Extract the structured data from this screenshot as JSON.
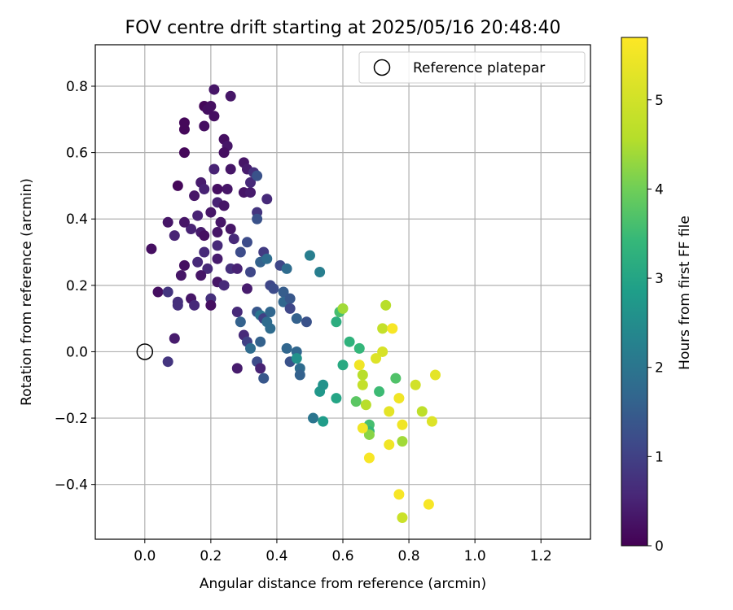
{
  "chart_data": {
    "type": "scatter",
    "title": "FOV centre drift starting at 2025/05/16 20:48:40",
    "xlabel": "Angular distance from reference (arcmin)",
    "ylabel": "Rotation from reference (arcmin)",
    "xlim": [
      -0.15,
      1.35
    ],
    "ylim": [
      -0.565,
      0.925
    ],
    "grid": true,
    "legend": {
      "placement": "top-right",
      "entries": [
        "Reference platepar"
      ]
    },
    "reference_point": {
      "x": 0.0,
      "y": 0.0
    },
    "x_ticks": [
      {
        "v": 0.0,
        "label": "0.0"
      },
      {
        "v": 0.2,
        "label": "0.2"
      },
      {
        "v": 0.4,
        "label": "0.4"
      },
      {
        "v": 0.6,
        "label": "0.6"
      },
      {
        "v": 0.8,
        "label": "0.8"
      },
      {
        "v": 1.0,
        "label": "1.0"
      },
      {
        "v": 1.2,
        "label": "1.2"
      }
    ],
    "y_ticks": [
      {
        "v": -0.4,
        "label": "−0.4"
      },
      {
        "v": -0.2,
        "label": "−0.2"
      },
      {
        "v": 0.0,
        "label": "0.0"
      },
      {
        "v": 0.2,
        "label": "0.2"
      },
      {
        "v": 0.4,
        "label": "0.4"
      },
      {
        "v": 0.6,
        "label": "0.6"
      },
      {
        "v": 0.8,
        "label": "0.8"
      }
    ],
    "colorbar": {
      "label": "Hours from first FF file",
      "range": [
        0,
        5.7
      ],
      "colormap": "viridis",
      "ticks": [
        {
          "v": 0,
          "label": "0"
        },
        {
          "v": 1,
          "label": "1"
        },
        {
          "v": 2,
          "label": "2"
        },
        {
          "v": 3,
          "label": "3"
        },
        {
          "v": 4,
          "label": "4"
        },
        {
          "v": 5,
          "label": "5"
        }
      ]
    },
    "points": [
      [
        0.1,
        0.5,
        0.1
      ],
      [
        0.12,
        0.69,
        0.1
      ],
      [
        0.12,
        0.67,
        0.1
      ],
      [
        0.12,
        0.6,
        0.1
      ],
      [
        0.18,
        0.74,
        0.1
      ],
      [
        0.19,
        0.73,
        0.2
      ],
      [
        0.2,
        0.74,
        0.2
      ],
      [
        0.21,
        0.71,
        0.2
      ],
      [
        0.18,
        0.68,
        0.2
      ],
      [
        0.21,
        0.79,
        0.3
      ],
      [
        0.26,
        0.77,
        0.3
      ],
      [
        0.24,
        0.64,
        0.2
      ],
      [
        0.25,
        0.62,
        0.3
      ],
      [
        0.24,
        0.6,
        0.2
      ],
      [
        0.3,
        0.57,
        0.3
      ],
      [
        0.31,
        0.55,
        0.4
      ],
      [
        0.26,
        0.55,
        0.3
      ],
      [
        0.21,
        0.55,
        0.5
      ],
      [
        0.17,
        0.51,
        0.4
      ],
      [
        0.18,
        0.49,
        0.5
      ],
      [
        0.15,
        0.47,
        0.3
      ],
      [
        0.22,
        0.49,
        0.2
      ],
      [
        0.25,
        0.49,
        0.3
      ],
      [
        0.22,
        0.45,
        0.5
      ],
      [
        0.2,
        0.42,
        0.3
      ],
      [
        0.24,
        0.44,
        0.3
      ],
      [
        0.16,
        0.41,
        0.5
      ],
      [
        0.23,
        0.39,
        0.3
      ],
      [
        0.26,
        0.37,
        0.3
      ],
      [
        0.22,
        0.36,
        0.3
      ],
      [
        0.17,
        0.36,
        0.4
      ],
      [
        0.18,
        0.35,
        0.2
      ],
      [
        0.14,
        0.37,
        0.5
      ],
      [
        0.07,
        0.39,
        0.3
      ],
      [
        0.12,
        0.39,
        0.3
      ],
      [
        0.09,
        0.35,
        0.5
      ],
      [
        0.02,
        0.31,
        0.2
      ],
      [
        0.22,
        0.32,
        0.6
      ],
      [
        0.22,
        0.28,
        0.4
      ],
      [
        0.18,
        0.3,
        0.6
      ],
      [
        0.16,
        0.27,
        0.6
      ],
      [
        0.12,
        0.26,
        0.2
      ],
      [
        0.19,
        0.25,
        0.6
      ],
      [
        0.11,
        0.23,
        0.3
      ],
      [
        0.17,
        0.23,
        0.3
      ],
      [
        0.22,
        0.21,
        0.3
      ],
      [
        0.24,
        0.2,
        0.6
      ],
      [
        0.04,
        0.18,
        0.2
      ],
      [
        0.07,
        0.18,
        0.8
      ],
      [
        0.1,
        0.15,
        0.7
      ],
      [
        0.1,
        0.14,
        0.7
      ],
      [
        0.14,
        0.16,
        0.3
      ],
      [
        0.15,
        0.14,
        0.6
      ],
      [
        0.2,
        0.16,
        0.7
      ],
      [
        0.2,
        0.14,
        0.2
      ],
      [
        0.09,
        0.04,
        0.4
      ],
      [
        0.07,
        -0.03,
        0.8
      ],
      [
        0.28,
        -0.05,
        0.4
      ],
      [
        0.27,
        0.34,
        0.6
      ],
      [
        0.26,
        0.25,
        0.7
      ],
      [
        0.28,
        0.25,
        0.5
      ],
      [
        0.29,
        0.3,
        1.2
      ],
      [
        0.31,
        0.33,
        1.2
      ],
      [
        0.3,
        0.48,
        0.3
      ],
      [
        0.32,
        0.48,
        0.4
      ],
      [
        0.32,
        0.51,
        0.6
      ],
      [
        0.33,
        0.54,
        0.7
      ],
      [
        0.34,
        0.53,
        1.3
      ],
      [
        0.37,
        0.46,
        0.6
      ],
      [
        0.34,
        0.42,
        0.8
      ],
      [
        0.34,
        0.4,
        1.3
      ],
      [
        0.36,
        0.3,
        0.9
      ],
      [
        0.35,
        0.27,
        1.6
      ],
      [
        0.37,
        0.28,
        1.8
      ],
      [
        0.32,
        0.24,
        1.1
      ],
      [
        0.31,
        0.19,
        0.4
      ],
      [
        0.28,
        0.12,
        0.6
      ],
      [
        0.29,
        0.09,
        1.6
      ],
      [
        0.3,
        0.05,
        0.6
      ],
      [
        0.31,
        0.03,
        1.0
      ],
      [
        0.32,
        0.01,
        1.8
      ],
      [
        0.34,
        -0.03,
        1.2
      ],
      [
        0.35,
        -0.05,
        0.5
      ],
      [
        0.35,
        0.03,
        1.6
      ],
      [
        0.36,
        -0.08,
        1.4
      ],
      [
        0.34,
        0.12,
        1.4
      ],
      [
        0.35,
        0.11,
        2.0
      ],
      [
        0.36,
        0.1,
        1.0
      ],
      [
        0.37,
        0.09,
        1.8
      ],
      [
        0.38,
        0.07,
        1.8
      ],
      [
        0.38,
        0.12,
        1.7
      ],
      [
        0.38,
        0.2,
        1.1
      ],
      [
        0.39,
        0.19,
        1.2
      ],
      [
        0.41,
        0.26,
        1.1
      ],
      [
        0.42,
        0.18,
        1.5
      ],
      [
        0.42,
        0.15,
        1.7
      ],
      [
        0.43,
        0.25,
        1.8
      ],
      [
        0.44,
        0.16,
        1.4
      ],
      [
        0.44,
        0.13,
        1.1
      ],
      [
        0.46,
        0.1,
        1.6
      ],
      [
        0.49,
        0.09,
        1.3
      ],
      [
        0.5,
        0.29,
        2.2
      ],
      [
        0.53,
        0.24,
        2.2
      ],
      [
        0.43,
        0.01,
        1.7
      ],
      [
        0.44,
        -0.03,
        1.3
      ],
      [
        0.46,
        0.0,
        1.7
      ],
      [
        0.46,
        -0.02,
        2.6
      ],
      [
        0.47,
        -0.05,
        1.8
      ],
      [
        0.47,
        -0.07,
        1.6
      ],
      [
        0.51,
        -0.2,
        2.0
      ],
      [
        0.53,
        -0.12,
        2.7
      ],
      [
        0.54,
        -0.1,
        2.6
      ],
      [
        0.54,
        -0.21,
        2.8
      ],
      [
        0.58,
        -0.14,
        3.0
      ],
      [
        0.58,
        0.09,
        3.2
      ],
      [
        0.59,
        0.12,
        3.6
      ],
      [
        0.6,
        0.13,
        4.4
      ],
      [
        0.6,
        -0.04,
        3.1
      ],
      [
        0.62,
        0.03,
        3.3
      ],
      [
        0.65,
        0.01,
        3.4
      ],
      [
        0.64,
        -0.15,
        3.8
      ],
      [
        0.66,
        -0.07,
        4.6
      ],
      [
        0.66,
        -0.1,
        4.8
      ],
      [
        0.67,
        -0.16,
        4.6
      ],
      [
        0.68,
        -0.22,
        3.6
      ],
      [
        0.68,
        -0.24,
        3.4
      ],
      [
        0.68,
        -0.25,
        4.2
      ],
      [
        0.66,
        -0.23,
        5.5
      ],
      [
        0.65,
        -0.04,
        5.5
      ],
      [
        0.68,
        -0.32,
        5.6
      ],
      [
        0.7,
        -0.02,
        5.2
      ],
      [
        0.71,
        -0.12,
        3.5
      ],
      [
        0.72,
        0.07,
        4.8
      ],
      [
        0.72,
        0.0,
        5.1
      ],
      [
        0.73,
        0.14,
        4.6
      ],
      [
        0.74,
        -0.28,
        5.5
      ],
      [
        0.74,
        -0.18,
        5.3
      ],
      [
        0.75,
        0.07,
        5.6
      ],
      [
        0.76,
        -0.08,
        3.7
      ],
      [
        0.77,
        -0.14,
        5.5
      ],
      [
        0.77,
        -0.43,
        5.6
      ],
      [
        0.78,
        -0.22,
        5.5
      ],
      [
        0.78,
        -0.27,
        4.4
      ],
      [
        0.78,
        -0.5,
        4.9
      ],
      [
        0.82,
        -0.1,
        5.0
      ],
      [
        0.84,
        -0.18,
        4.7
      ],
      [
        0.86,
        -0.46,
        5.6
      ],
      [
        0.87,
        -0.21,
        5.2
      ],
      [
        0.88,
        -0.07,
        5.3
      ]
    ]
  }
}
